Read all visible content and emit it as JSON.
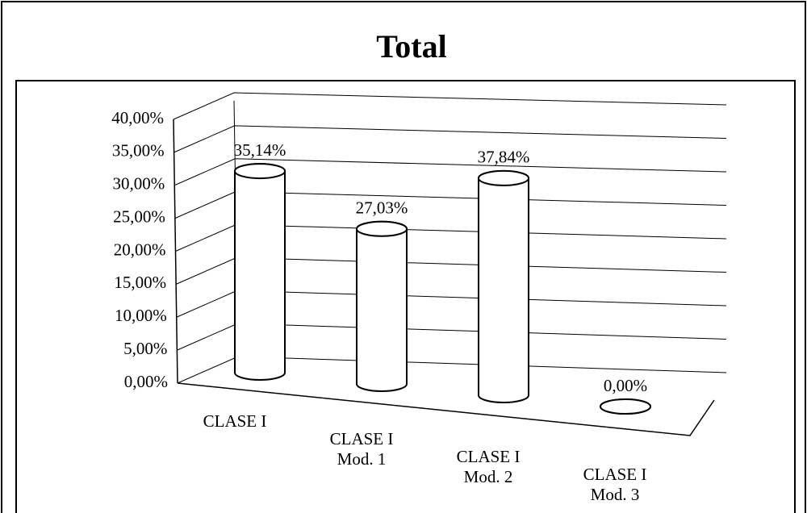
{
  "chart_data": {
    "type": "bar",
    "title": "Total",
    "categories": [
      "CLASE I",
      "CLASE I Mod. 1",
      "CLASE I Mod. 2",
      "CLASE I Mod. 3"
    ],
    "values": [
      35.14,
      27.03,
      37.84,
      0
    ],
    "value_labels": [
      "35,14%",
      "27,03%",
      "37,84%",
      "0,00%"
    ],
    "color": "#ffffff",
    "ylim": [
      0,
      40
    ],
    "yticks": [
      {
        "value": 0,
        "label": "0,00%"
      },
      {
        "value": 5,
        "label": "5,00%"
      },
      {
        "value": 10,
        "label": "10,00%"
      },
      {
        "value": 15,
        "label": "15,00%"
      },
      {
        "value": 20,
        "label": "20,00%"
      },
      {
        "value": 25,
        "label": "25,00%"
      },
      {
        "value": 30,
        "label": "30,00%"
      },
      {
        "value": 35,
        "label": "35,00%"
      },
      {
        "value": 40,
        "label": "40,00%"
      }
    ],
    "grid": true
  }
}
